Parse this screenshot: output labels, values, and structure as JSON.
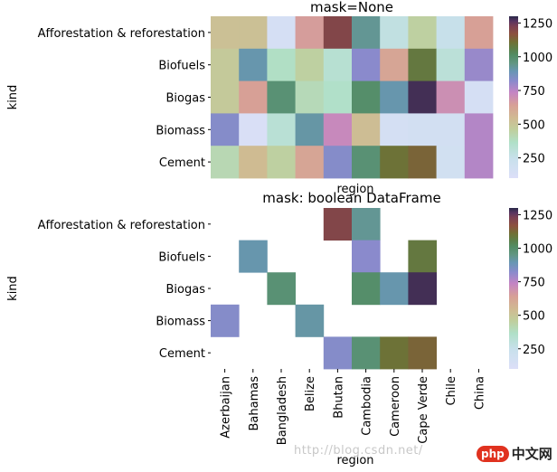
{
  "chart_data": [
    {
      "type": "heatmap",
      "title": "mask=None",
      "xlabel": "region",
      "ylabel": "kind",
      "x_categories": [
        "Azerbaijan",
        "Bahamas",
        "Bangladesh",
        "Belize",
        "Bhutan",
        "Cambodia",
        "Cameroon",
        "Cape Verde",
        "Chile",
        "China"
      ],
      "y_categories": [
        "Afforestation & reforestation",
        "Biofuels",
        "Biogas",
        "Biomass",
        "Cement"
      ],
      "colorbar": {
        "vmin": 100,
        "vmax": 1300,
        "ticks": [
          250,
          500,
          750,
          1000,
          1250
        ]
      },
      "values": [
        [
          520,
          520,
          150,
          650,
          1200,
          930,
          280,
          450,
          250,
          640
        ],
        [
          480,
          900,
          370,
          450,
          330,
          820,
          620,
          1080,
          310,
          800
        ],
        [
          480,
          640,
          980,
          400,
          360,
          1000,
          900,
          1280,
          700,
          150
        ],
        [
          830,
          120,
          320,
          910,
          720,
          530,
          160,
          170,
          170,
          760
        ],
        [
          410,
          540,
          450,
          620,
          830,
          980,
          1100,
          1130,
          180,
          760
        ]
      ]
    },
    {
      "type": "heatmap",
      "title": "mask: boolean DataFrame",
      "xlabel": "region",
      "ylabel": "kind",
      "x_categories": [
        "Azerbaijan",
        "Bahamas",
        "Bangladesh",
        "Belize",
        "Bhutan",
        "Cambodia",
        "Cameroon",
        "Cape Verde",
        "Chile",
        "China"
      ],
      "y_categories": [
        "Afforestation & reforestation",
        "Biofuels",
        "Biogas",
        "Biomass",
        "Cement"
      ],
      "colorbar": {
        "vmin": 100,
        "vmax": 1300,
        "ticks": [
          250,
          500,
          750,
          1000,
          1250
        ]
      },
      "values": [
        [
          null,
          null,
          null,
          null,
          1200,
          930,
          null,
          null,
          null,
          null
        ],
        [
          null,
          900,
          null,
          null,
          null,
          820,
          null,
          1080,
          null,
          null
        ],
        [
          null,
          null,
          980,
          null,
          null,
          1000,
          900,
          1280,
          null,
          null
        ],
        [
          830,
          null,
          null,
          910,
          null,
          null,
          null,
          null,
          null,
          null
        ],
        [
          null,
          null,
          null,
          null,
          830,
          980,
          1100,
          1130,
          null,
          null
        ]
      ]
    }
  ],
  "watermark": {
    "url": "http://blog.csdn.net/",
    "logo_badge": "php",
    "logo_text": "中文网"
  }
}
